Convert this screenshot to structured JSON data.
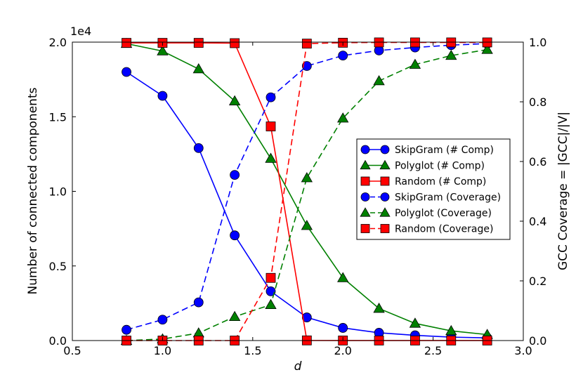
{
  "chart_data": {
    "type": "line",
    "xlabel": "d",
    "ylabel_left": "Number of connected components",
    "ylabel_right": "GCC Coverage = |GCC|/|V|",
    "left_axis_multiplier": "1e4",
    "xlim": [
      0.5,
      3.0
    ],
    "ylim_left": [
      0,
      20000
    ],
    "ylim_right": [
      0,
      1.0
    ],
    "x_ticks": [
      "0.5",
      "1.0",
      "1.5",
      "2.0",
      "2.5",
      "3.0"
    ],
    "y_left_ticks": [
      "0.0",
      "0.5",
      "1.0",
      "1.5",
      "2.0"
    ],
    "y_right_ticks": [
      "0.0",
      "0.2",
      "0.4",
      "0.6",
      "0.8",
      "1.0"
    ],
    "grid": false,
    "legend_position": "center-right",
    "x": [
      0.8,
      1.0,
      1.2,
      1.4,
      1.6,
      1.8,
      2.0,
      2.2,
      2.4,
      2.6,
      2.8
    ],
    "series": [
      {
        "name": "SkipGram (# Comp)",
        "axis": "left",
        "color": "#0000ff",
        "marker": "circle",
        "linestyle": "solid",
        "values": [
          18000,
          16400,
          12900,
          7050,
          3300,
          1550,
          850,
          520,
          350,
          230,
          180
        ]
      },
      {
        "name": "Polyglot (# Comp)",
        "axis": "left",
        "color": "#008000",
        "marker": "triangle",
        "linestyle": "solid",
        "values": [
          19900,
          19400,
          18200,
          16050,
          12200,
          7700,
          4200,
          2150,
          1150,
          650,
          400
        ]
      },
      {
        "name": "Random (# Comp)",
        "axis": "left",
        "color": "#ff0000",
        "marker": "square",
        "linestyle": "solid",
        "values": [
          19950,
          19950,
          19950,
          19930,
          14350,
          10,
          5,
          3,
          2,
          2,
          2
        ]
      },
      {
        "name": "SkipGram (Coverage)",
        "axis": "right",
        "color": "#0000ff",
        "marker": "circle",
        "linestyle": "dashed",
        "values": [
          0.036,
          0.07,
          0.128,
          0.555,
          0.815,
          0.92,
          0.955,
          0.972,
          0.982,
          0.99,
          0.995
        ]
      },
      {
        "name": "Polyglot (Coverage)",
        "axis": "right",
        "color": "#008000",
        "marker": "triangle",
        "linestyle": "dashed",
        "values": [
          0.0,
          0.005,
          0.025,
          0.08,
          0.12,
          0.545,
          0.745,
          0.87,
          0.925,
          0.955,
          0.975
        ]
      },
      {
        "name": "Random (Coverage)",
        "axis": "right",
        "color": "#ff0000",
        "marker": "square",
        "linestyle": "dashed",
        "values": [
          0.0,
          0.0,
          0.0,
          0.0,
          0.21,
          0.995,
          0.998,
          0.999,
          0.999,
          0.999,
          0.999
        ]
      }
    ]
  }
}
